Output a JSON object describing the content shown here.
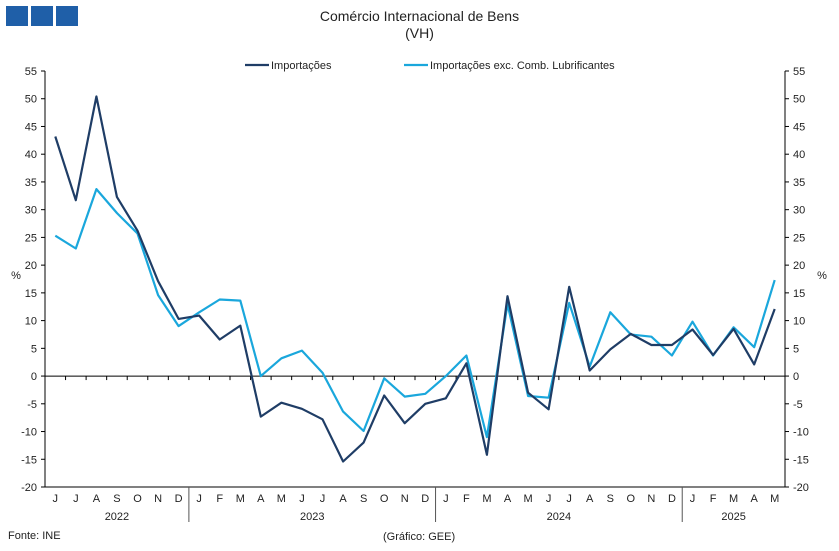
{
  "header": {
    "title": "Comércio Internacional de Bens",
    "subtitle": "(VH)"
  },
  "footer": {
    "source": "Fonte: INE",
    "credit": "(Gráfico: GEE)"
  },
  "chart_data": {
    "type": "line",
    "title": "Comércio Internacional de Bens",
    "subtitle": "(VH)",
    "ylabel_left": "%",
    "ylabel_right": "%",
    "ylim": [
      -20,
      55
    ],
    "yticks": [
      -20,
      -15,
      -10,
      -5,
      0,
      5,
      10,
      15,
      20,
      25,
      30,
      35,
      40,
      45,
      50,
      55
    ],
    "grid": false,
    "legend_position": "top",
    "categories": [
      "J",
      "J",
      "A",
      "S",
      "O",
      "N",
      "D",
      "J",
      "F",
      "M",
      "A",
      "M",
      "J",
      "J",
      "A",
      "S",
      "O",
      "N",
      "D",
      "J",
      "F",
      "M",
      "A",
      "M",
      "J",
      "J",
      "A",
      "S",
      "O",
      "N",
      "D",
      "J",
      "F",
      "M",
      "A",
      "M"
    ],
    "years": [
      {
        "label": "2022",
        "start": 0,
        "end": 6
      },
      {
        "label": "2023",
        "start": 7,
        "end": 18
      },
      {
        "label": "2024",
        "start": 19,
        "end": 30
      },
      {
        "label": "2025",
        "start": 31,
        "end": 35
      }
    ],
    "series": [
      {
        "name": "Importações",
        "color": "#1f3d66",
        "values": [
          43.2,
          31.7,
          50.4,
          32.3,
          26.2,
          17.1,
          10.3,
          10.9,
          6.6,
          9.1,
          -7.3,
          -4.8,
          -5.9,
          -7.8,
          -15.4,
          -12.0,
          -3.5,
          -8.5,
          -5.0,
          -4.0,
          2.3,
          -14.2,
          14.4,
          -3.0,
          -6.0,
          16.1,
          1.0,
          4.8,
          7.6,
          5.6,
          5.6,
          8.4,
          3.8,
          8.5,
          2.1,
          12.1
        ]
      },
      {
        "name": "Importações exc. Comb. Lubrificantes",
        "color": "#1aa7dc",
        "values": [
          25.3,
          23.0,
          33.7,
          29.4,
          25.7,
          14.6,
          9.0,
          11.5,
          13.8,
          13.6,
          0.0,
          3.2,
          4.6,
          0.6,
          -6.4,
          -9.9,
          -0.4,
          -3.7,
          -3.2,
          0.0,
          3.7,
          -11.0,
          13.0,
          -3.6,
          -3.9,
          13.2,
          1.7,
          11.5,
          7.5,
          7.1,
          3.7,
          9.8,
          3.7,
          8.8,
          5.2,
          17.3
        ]
      }
    ]
  }
}
